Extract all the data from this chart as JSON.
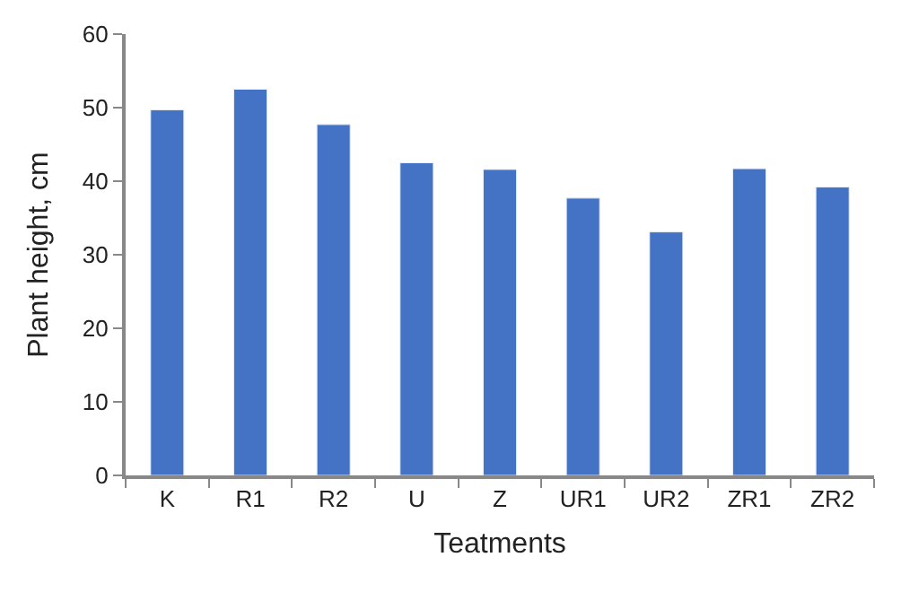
{
  "chart_data": {
    "type": "bar",
    "xlabel": "Teatments",
    "ylabel": "Plant height, cm",
    "categories": [
      "K",
      "R1",
      "R2",
      "U",
      "Z",
      "UR1",
      "UR2",
      "ZR1",
      "ZR2"
    ],
    "values": [
      49.7,
      52.5,
      47.7,
      42.5,
      41.6,
      37.7,
      33.1,
      41.7,
      39.2
    ],
    "color": "#4472c4",
    "ylim": [
      0,
      60
    ],
    "yticks": [
      0,
      10,
      20,
      30,
      40,
      50,
      60
    ]
  }
}
